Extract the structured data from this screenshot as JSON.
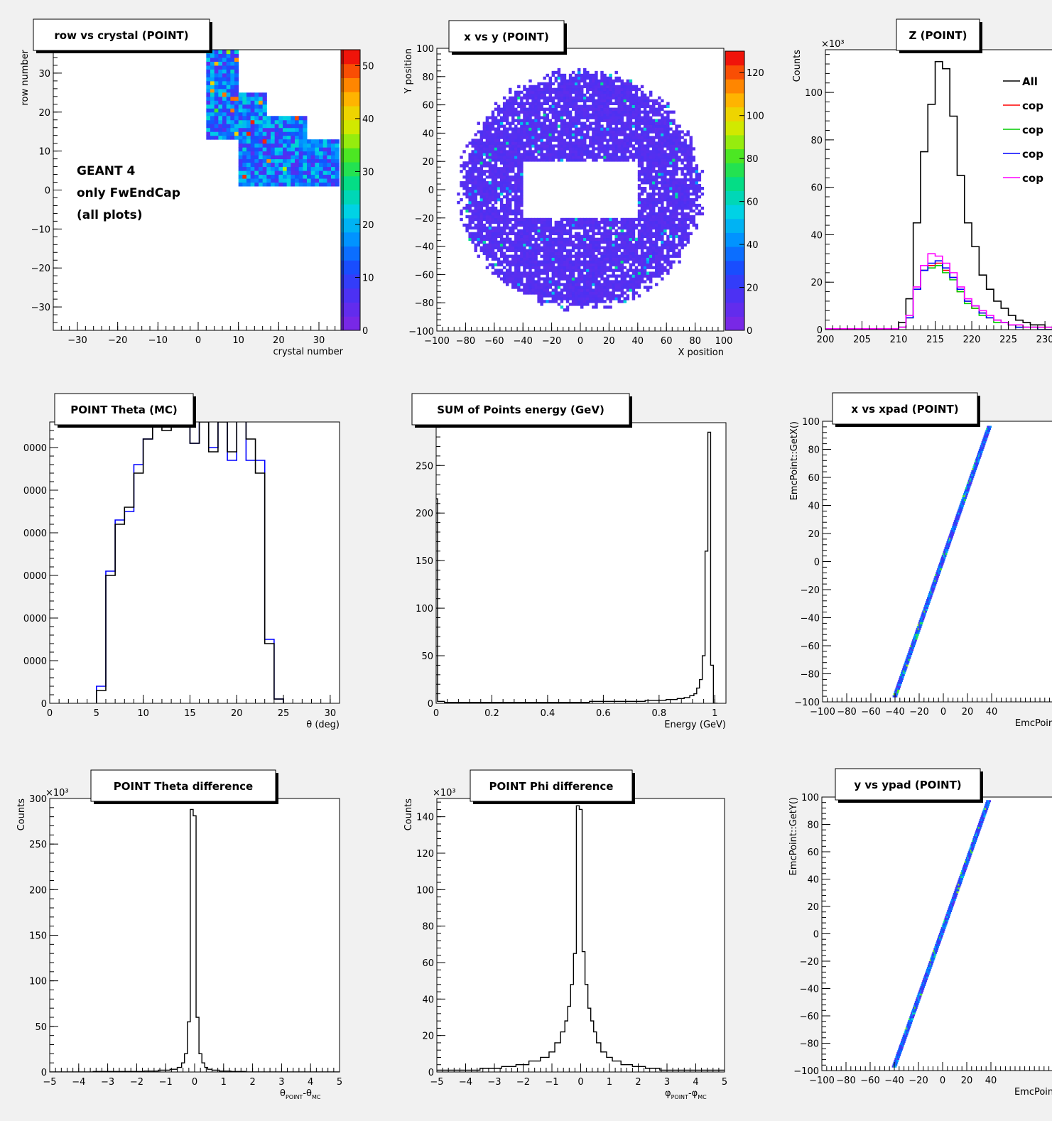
{
  "chart_data": [
    {
      "id": "p1",
      "type": "heatmap",
      "title": "row vs crystal (POINT)",
      "xlabel": "crystal number",
      "ylabel": "row number",
      "xlim": [
        -36,
        36
      ],
      "ylim": [
        -36,
        36
      ],
      "xticks": [
        -30,
        -20,
        -10,
        0,
        10,
        20,
        30
      ],
      "yticks": [
        -30,
        -20,
        -10,
        0,
        10,
        20,
        30
      ],
      "ytick_labels": [
        "−30",
        "−20",
        "−10",
        "0",
        "10",
        "20",
        "30"
      ],
      "xtick_labels": [
        "−30",
        "−20",
        "−10",
        "0",
        "10",
        "20",
        "30"
      ],
      "cell_bins": 1,
      "value_max": 53,
      "colorbar": {
        "ticks": [
          0,
          10,
          20,
          30,
          40,
          50
        ],
        "labels": [
          "0",
          "10",
          "20",
          "30",
          "40",
          "50"
        ],
        "max": 53
      },
      "annotation": [
        "GEANT 4",
        "only FwEndCap",
        "(all plots)"
      ],
      "region": {
        "rows": [
          {
            "y": [
              25,
              36
            ],
            "x": [
              2,
              10
            ]
          },
          {
            "y": [
              19,
              25
            ],
            "x": [
              2,
              17
            ]
          },
          {
            "y": [
              13,
              19
            ],
            "x": [
              2,
              27
            ]
          },
          {
            "y": [
              7,
              13
            ],
            "x": [
              10,
              35
            ]
          },
          {
            "y": [
              1,
              7
            ],
            "x": [
              10,
              35
            ]
          }
        ]
      },
      "typical_value": 14
    },
    {
      "id": "p2",
      "type": "heatmap",
      "title": "x vs y (POINT)",
      "xlabel": "X position",
      "ylabel": "Y position",
      "xlim": [
        -100,
        100
      ],
      "ylim": [
        -100,
        100
      ],
      "xticks": [
        -100,
        -80,
        -60,
        -40,
        -20,
        0,
        20,
        40,
        60,
        80,
        100
      ],
      "xtick_labels": [
        "−100",
        "−80",
        "−60",
        "−40",
        "−20",
        "0",
        "20",
        "40",
        "60",
        "80",
        "100"
      ],
      "yticks": [
        -100,
        -80,
        -60,
        -40,
        -20,
        0,
        20,
        40,
        60,
        80,
        100
      ],
      "ytick_labels": [
        "−100",
        "−80",
        "−60",
        "−40",
        "−20",
        "0",
        "20",
        "40",
        "60",
        "80",
        "100"
      ],
      "colorbar": {
        "ticks": [
          0,
          20,
          40,
          60,
          80,
          100,
          120
        ],
        "labels": [
          "0",
          "20",
          "40",
          "60",
          "80",
          "100",
          "120"
        ],
        "max": 130
      },
      "ring_outer_radius": 83,
      "hole": {
        "x": [
          -40,
          40
        ],
        "y": [
          -20,
          20
        ]
      },
      "typical_value": 8
    },
    {
      "id": "p3",
      "type": "line",
      "title": "Z (POINT)",
      "ylabel": "Counts",
      "xlabel": "",
      "y_multiplier": "×10³",
      "xlim": [
        200,
        233
      ],
      "ylim": [
        0,
        118
      ],
      "xticks": [
        200,
        205,
        210,
        215,
        220,
        225,
        230
      ],
      "xtick_labels": [
        "200",
        "205",
        "210",
        "215",
        "220",
        "225",
        "230"
      ],
      "yticks": [
        0,
        20,
        40,
        60,
        80,
        100
      ],
      "ytick_labels": [
        "0",
        "20",
        "40",
        "60",
        "80",
        "100"
      ],
      "bin_edges": [
        210,
        211,
        212,
        213,
        214,
        215,
        216,
        217,
        218,
        219,
        220,
        221,
        222,
        223,
        224,
        225,
        226,
        227,
        228,
        229,
        230,
        231,
        232,
        233
      ],
      "series": [
        {
          "name": "All",
          "color": "#000000",
          "values": [
            3,
            13,
            45,
            75,
            95,
            113,
            110,
            90,
            65,
            45,
            35,
            23,
            17,
            12,
            9,
            6,
            4,
            3,
            2,
            2,
            1,
            1,
            0
          ]
        },
        {
          "name": "cop",
          "color": "#ff0000",
          "values": [
            1,
            5,
            17,
            25,
            27,
            28,
            25,
            22,
            16,
            12,
            9,
            7,
            5,
            4,
            3,
            2,
            2,
            1,
            1,
            1,
            0,
            0,
            0
          ]
        },
        {
          "name": "cop",
          "color": "#00cc00",
          "values": [
            1,
            5,
            17,
            25,
            26,
            27,
            24,
            21,
            16,
            11,
            9,
            6,
            5,
            3,
            3,
            2,
            1,
            1,
            1,
            0,
            0,
            0,
            0
          ]
        },
        {
          "name": "cop",
          "color": "#0000ff",
          "values": [
            1,
            5,
            17,
            25,
            28,
            29,
            26,
            22,
            17,
            12,
            10,
            7,
            5,
            4,
            3,
            2,
            1,
            1,
            1,
            0,
            0,
            0,
            0
          ]
        },
        {
          "name": "cop",
          "color": "#ff00ff",
          "values": [
            1,
            6,
            18,
            27,
            32,
            31,
            28,
            24,
            18,
            13,
            10,
            8,
            6,
            4,
            3,
            2,
            2,
            1,
            1,
            1,
            1,
            0,
            0
          ]
        }
      ]
    },
    {
      "id": "p4",
      "type": "line",
      "title": "POINT Theta (MC)",
      "xlabel": "θ (deg)",
      "ylabel": "",
      "xlim": [
        0,
        31
      ],
      "ylim": [
        0,
        66000
      ],
      "xticks": [
        0,
        5,
        10,
        15,
        20,
        25,
        30
      ],
      "xtick_labels": [
        "0",
        "5",
        "10",
        "15",
        "20",
        "25",
        "30"
      ],
      "yticks": [
        0,
        10000,
        20000,
        30000,
        40000,
        50000,
        60000
      ],
      "ytick_labels": [
        "0",
        "0000",
        "0000",
        "0000",
        "0000",
        "0000",
        "0000"
      ],
      "bin_edges": [
        5,
        6,
        7,
        8,
        9,
        10,
        11,
        12,
        13,
        14,
        15,
        16,
        17,
        18,
        19,
        20,
        21,
        22,
        23,
        24,
        25
      ],
      "series": [
        {
          "name": "",
          "color": "#0000ff",
          "values": [
            4000,
            31000,
            43000,
            45000,
            56000,
            62000,
            70000,
            65000,
            71000,
            74000,
            61000,
            68000,
            60000,
            68000,
            57000,
            70000,
            57000,
            57000,
            15000,
            1000
          ]
        },
        {
          "name": "",
          "color": "#000000",
          "values": [
            3000,
            30000,
            42000,
            46000,
            54000,
            62000,
            68000,
            64000,
            69000,
            76000,
            61000,
            66000,
            59000,
            66000,
            59000,
            68000,
            62000,
            54000,
            14000,
            1000
          ]
        }
      ]
    },
    {
      "id": "p5",
      "type": "line",
      "title": "SUM of Points energy (GeV)",
      "xlabel": "Energy (GeV)",
      "ylabel": "",
      "xlim": [
        0,
        1.04
      ],
      "ylim": [
        0,
        295
      ],
      "xticks": [
        0,
        0.2,
        0.4,
        0.6,
        0.8,
        1.0
      ],
      "xtick_labels": [
        "0",
        "0.2",
        "0.4",
        "0.6",
        "0.8",
        "1"
      ],
      "yticks": [
        0,
        50,
        100,
        150,
        200,
        250
      ],
      "ytick_labels": [
        "0",
        "50",
        "100",
        "150",
        "200",
        "250"
      ],
      "series": [
        {
          "name": "",
          "color": "#000000",
          "x": [
            0.0,
            0.01,
            0.05,
            0.1,
            0.2,
            0.3,
            0.4,
            0.5,
            0.6,
            0.7,
            0.8,
            0.85,
            0.88,
            0.9,
            0.92,
            0.93,
            0.94,
            0.95,
            0.96,
            0.97,
            0.98,
            0.99,
            1.0,
            1.01
          ],
          "values": [
            215,
            2,
            1,
            1,
            1,
            1,
            1,
            1,
            2,
            2,
            3,
            4,
            5,
            6,
            8,
            10,
            16,
            25,
            50,
            160,
            285,
            40,
            0,
            0
          ]
        }
      ]
    },
    {
      "id": "p6",
      "type": "scatter",
      "title": "x vs xpad (POINT)",
      "xlabel": "EmcPoint::",
      "ylabel": "EmcPoint::GetX()",
      "xlim": [
        -100,
        100
      ],
      "ylim": [
        -100,
        100
      ],
      "xticks": [
        -100,
        -80,
        -60,
        -40,
        -20,
        0,
        20,
        40
      ],
      "xtick_labels": [
        "−100",
        "−80",
        "−60",
        "−40",
        "−20",
        "0",
        "20",
        "40"
      ],
      "yticks": [
        -100,
        -80,
        -60,
        -40,
        -20,
        0,
        20,
        40,
        60,
        80,
        100
      ],
      "ytick_labels": [
        "−100",
        "−80",
        "−60",
        "−40",
        "−20",
        "0",
        "20",
        "40",
        "60",
        "80",
        "100"
      ],
      "points": [
        [
          -40,
          -96
        ],
        [
          38,
          96
        ]
      ]
    },
    {
      "id": "p7",
      "type": "line",
      "title": "POINT Theta difference",
      "xlabel": "θ",
      "ylabel": "Counts",
      "x_label_sub_a": "POINT",
      "x_label_mid": "-θ",
      "x_label_sub_b": "MC",
      "y_multiplier": "×10³",
      "xlim": [
        -5,
        5
      ],
      "ylim": [
        0,
        300
      ],
      "xticks": [
        -5,
        -4,
        -3,
        -2,
        -1,
        0,
        1,
        2,
        3,
        4,
        5
      ],
      "xtick_labels": [
        "−5",
        "−4",
        "−3",
        "−2",
        "−1",
        "0",
        "1",
        "2",
        "3",
        "4",
        "5"
      ],
      "yticks": [
        0,
        50,
        100,
        150,
        200,
        250,
        300
      ],
      "ytick_labels": [
        "0",
        "50",
        "100",
        "150",
        "200",
        "250",
        "300"
      ],
      "series": [
        {
          "name": "",
          "color": "#000000",
          "x": [
            -5,
            -2,
            -1.5,
            -1,
            -0.7,
            -0.5,
            -0.4,
            -0.3,
            -0.2,
            -0.1,
            0,
            0.1,
            0.2,
            0.3,
            0.4,
            0.5,
            0.7,
            1,
            1.5,
            2,
            5
          ],
          "values": [
            0,
            0.5,
            1,
            2,
            3,
            5,
            10,
            20,
            55,
            288,
            281,
            60,
            20,
            10,
            5,
            3,
            2,
            1,
            0.5,
            0,
            0
          ]
        }
      ]
    },
    {
      "id": "p8",
      "type": "line",
      "title": "POINT Phi difference",
      "xlabel": "φ",
      "ylabel": "Counts",
      "x_label_sub_a": "POINT",
      "x_label_mid": "-φ",
      "x_label_sub_b": "MC",
      "y_multiplier": "×10³",
      "xlim": [
        -5,
        5
      ],
      "ylim": [
        0,
        150
      ],
      "xticks": [
        -5,
        -4,
        -3,
        -2,
        -1,
        0,
        1,
        2,
        3,
        4,
        5
      ],
      "xtick_labels": [
        "−5",
        "−4",
        "−3",
        "−2",
        "−1",
        "0",
        "1",
        "2",
        "3",
        "4",
        "5"
      ],
      "yticks": [
        0,
        20,
        40,
        60,
        80,
        100,
        120,
        140
      ],
      "ytick_labels": [
        "0",
        "20",
        "40",
        "60",
        "80",
        "100",
        "120",
        "140"
      ],
      "series": [
        {
          "name": "",
          "color": "#000000",
          "x": [
            -5,
            -4,
            -3,
            -2.5,
            -2,
            -1.6,
            -1.2,
            -1,
            -0.8,
            -0.6,
            -0.5,
            -0.4,
            -0.3,
            -0.2,
            -0.1,
            0,
            0.1,
            0.2,
            0.3,
            0.4,
            0.5,
            0.6,
            0.8,
            1,
            1.2,
            1.6,
            2,
            2.5,
            3,
            4,
            5
          ],
          "values": [
            1,
            1,
            2,
            3,
            4,
            6,
            8,
            11,
            16,
            22,
            28,
            36,
            48,
            65,
            146,
            144,
            66,
            48,
            35,
            28,
            22,
            16,
            11,
            8,
            6,
            4,
            3,
            2,
            1,
            1,
            1
          ]
        }
      ]
    },
    {
      "id": "p9",
      "type": "scatter",
      "title": "y vs ypad (POINT)",
      "xlabel": "EmcPoint::",
      "ylabel": "EmcPoint::GetY()",
      "xlim": [
        -100,
        100
      ],
      "ylim": [
        -100,
        100
      ],
      "xticks": [
        -100,
        -80,
        -60,
        -40,
        -20,
        0,
        20,
        40
      ],
      "xtick_labels": [
        "−100",
        "−80",
        "−60",
        "−40",
        "−20",
        "0",
        "20",
        "40"
      ],
      "yticks": [
        -100,
        -80,
        -60,
        -40,
        -20,
        0,
        20,
        40,
        60,
        80,
        100
      ],
      "ytick_labels": [
        "−100",
        "−80",
        "−60",
        "−40",
        "−20",
        "0",
        "20",
        "40",
        "60",
        "80",
        "100"
      ],
      "points": [
        [
          -40,
          -97
        ],
        [
          38,
          97
        ]
      ]
    }
  ]
}
